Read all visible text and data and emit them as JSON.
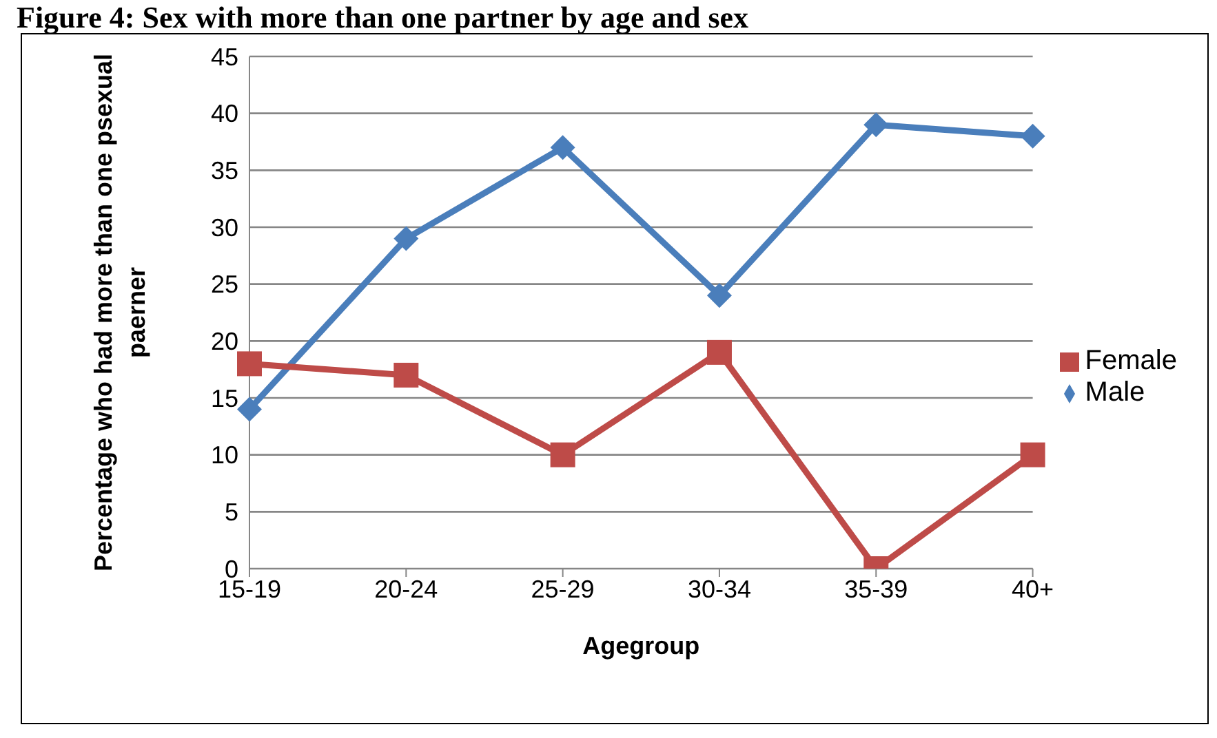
{
  "chart_data": {
    "type": "line",
    "title": "Figure 4: Sex with more than one partner by age and sex",
    "xlabel": "Agegroup",
    "ylabel": "Percentage who had more than one psexual paerner",
    "categories": [
      "15-19",
      "20-24",
      "25-29",
      "30-34",
      "35-39",
      "40+"
    ],
    "series": [
      {
        "name": "Male",
        "color": "#4a7ebb",
        "marker": "diamond",
        "values": [
          14,
          29,
          37,
          24,
          39,
          38
        ]
      },
      {
        "name": "Female",
        "color": "#be4b48",
        "marker": "square",
        "values": [
          18,
          17,
          10,
          19,
          0,
          10
        ]
      }
    ],
    "ylim": [
      0,
      45
    ],
    "yticks": [
      0,
      5,
      10,
      15,
      20,
      25,
      30,
      35,
      40,
      45
    ],
    "grid": "y",
    "legend": "right"
  }
}
